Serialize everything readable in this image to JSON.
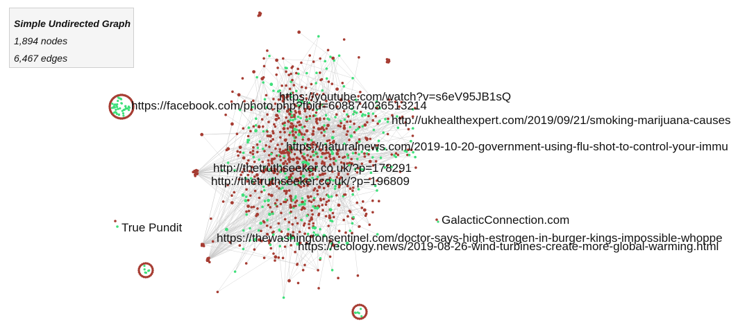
{
  "info": {
    "title": "Simple Undirected Graph",
    "nodes": "1,894 nodes",
    "edges": "6,467 edges"
  },
  "labels": [
    "https://youtube.com/watch?v=s6eV95JB1sQ",
    "https://facebook.com/photo.php?fbid=608874036513214",
    "http://ukhealthexpert.com/2019/09/21/smoking-marijuana-causes",
    "https://naturalnews.com/2019-10-20-government-using-flu-shot-to-control-your-immu",
    "http://thetruthseeker.co.uk/?p=178291",
    "http://thetruthseeker.co.uk/?p=196809",
    "GalacticConnection.com",
    "True Pundit",
    "https://thewashingtonsentinel.com/doctor-says-high-estrogen-in-burger-kings-impossible-whoppe",
    "https://ecology.news/2019-08-26-wind-turbines-create-more-global-warming.html"
  ],
  "colors": {
    "node_red": "#a63c32",
    "node_green": "#3ee07a",
    "edge": "#c8c8c8"
  }
}
